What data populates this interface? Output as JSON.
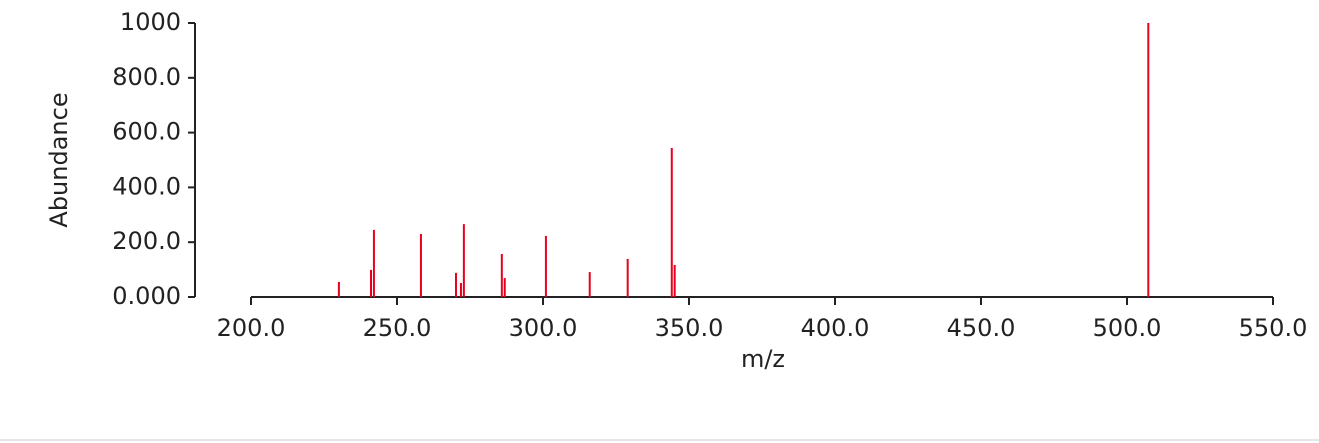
{
  "chart_data": {
    "type": "stem",
    "x_label": "m/z",
    "y_label": "Abundance",
    "x": [
      230.1,
      241.1,
      242.1,
      258.2,
      270.2,
      271.9,
      272.9,
      285.9,
      286.9,
      301.0,
      316.0,
      329.0,
      344.1,
      345.1,
      507.3
    ],
    "values": [
      55,
      99,
      245,
      230,
      88,
      51,
      266,
      157,
      69,
      223,
      91,
      139,
      544,
      117,
      1000
    ],
    "color": "#e8001c",
    "xlim": [
      200,
      550
    ],
    "xticks": [
      {
        "value": 200,
        "label": "200.0"
      },
      {
        "value": 250,
        "label": "250.0"
      },
      {
        "value": 300,
        "label": "300.0"
      },
      {
        "value": 350,
        "label": "350.0"
      },
      {
        "value": 400,
        "label": "400.0"
      },
      {
        "value": 450,
        "label": "450.0"
      },
      {
        "value": 500,
        "label": "500.0"
      },
      {
        "value": 550,
        "label": "550.0"
      }
    ],
    "ylim": [
      0,
      1000
    ],
    "yticks": [
      {
        "value": 0,
        "label": "0.000"
      },
      {
        "value": 200,
        "label": "200.0"
      },
      {
        "value": 400,
        "label": "400.0"
      },
      {
        "value": 600,
        "label": "600.0"
      },
      {
        "value": 800,
        "label": "800.0"
      },
      1000
    ]
  }
}
